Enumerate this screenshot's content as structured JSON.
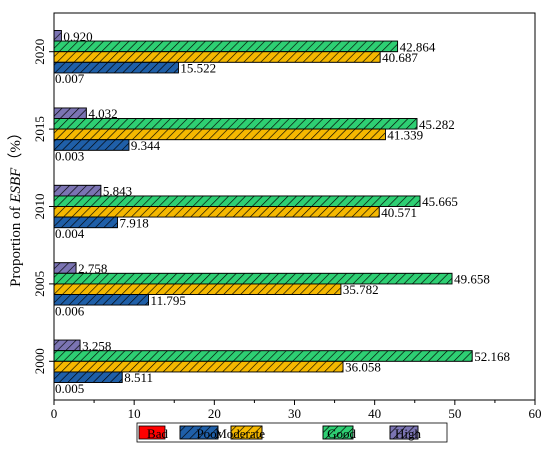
{
  "chart_data": {
    "type": "bar",
    "orientation": "horizontal",
    "categories": [
      "2000",
      "2005",
      "2010",
      "2015",
      "2020"
    ],
    "series": [
      {
        "name": "Bad",
        "values": [
          null,
          null,
          null,
          null,
          null
        ],
        "color": "#ff0000"
      },
      {
        "name": "Poor",
        "values": [
          8.511,
          11.795,
          7.918,
          9.344,
          15.522
        ],
        "color": "#1f5fa8"
      },
      {
        "name": "Moderate",
        "values": [
          36.058,
          35.782,
          40.571,
          41.339,
          40.687
        ],
        "color": "#f5b800"
      },
      {
        "name": "Good",
        "values": [
          52.168,
          49.658,
          45.665,
          45.282,
          42.864
        ],
        "color": "#2ecf73"
      },
      {
        "name": "High",
        "values": [
          3.258,
          2.758,
          5.843,
          4.032,
          0.92
        ],
        "color": "#7b74b3"
      }
    ],
    "row_labels": [
      [
        "0.005",
        "8.511",
        "36.058",
        "52.168",
        "3.258"
      ],
      [
        "0.006",
        "11.795",
        "35.782",
        "49.658",
        "2.758"
      ],
      [
        "0.004",
        "7.918",
        "40.571",
        "45.665",
        "5.843"
      ],
      [
        "0.003",
        "9.344",
        "41.339",
        "45.282",
        "4.032"
      ],
      [
        "0.007",
        "15.522",
        "40.687",
        "42.864",
        "0.920"
      ]
    ],
    "ylabel_prefix": "Proportion of ",
    "ylabel_italic": "ESBF",
    "ylabel_suffix": "（%）",
    "xlabel": "",
    "xlim": [
      0,
      60
    ],
    "xticks": [
      0,
      10,
      20,
      30,
      40,
      50,
      60
    ],
    "legend_position": "bottom"
  }
}
